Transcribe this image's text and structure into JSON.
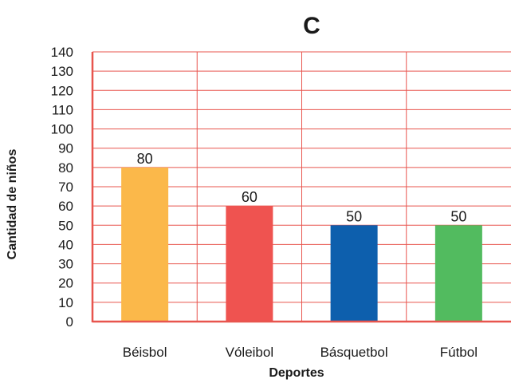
{
  "chart_data": {
    "type": "bar",
    "title": "C",
    "xlabel": "Deportes",
    "ylabel": "Cantidad de niños",
    "categories": [
      "Béisbol",
      "Vóleibol",
      "Básquetbol",
      "Fútbol"
    ],
    "values": [
      80,
      60,
      50,
      50
    ],
    "data_labels": [
      "80",
      "60",
      "50",
      "50"
    ],
    "ylim": [
      0,
      140
    ],
    "yticks": [
      "0",
      "10",
      "20",
      "30",
      "40",
      "50",
      "60",
      "70",
      "80",
      "90",
      "100",
      "110",
      "120",
      "130",
      "140"
    ],
    "grid": true,
    "legend": "none",
    "colors": {
      "bars": [
        "#fbb84a",
        "#ef5350",
        "#0d5fad",
        "#52bb5f"
      ],
      "grid": "#e8554e",
      "axis": "#e8554e"
    }
  }
}
